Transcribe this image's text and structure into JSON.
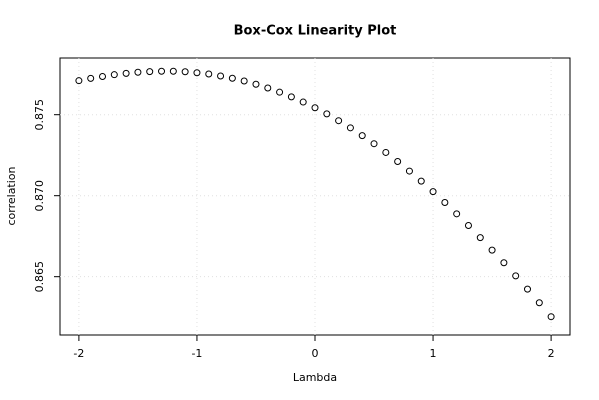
{
  "chart_data": {
    "type": "scatter",
    "title": "Box-Cox Linearity Plot",
    "x_label": "Lambda",
    "y_label": "correlation",
    "color": "#000000",
    "grid": true,
    "xlim": [
      -2.16,
      2.16
    ],
    "ylim": [
      0.8614,
      0.8785
    ],
    "xticks": [
      -2,
      -1,
      0,
      1,
      2
    ],
    "yticks": [
      0.865,
      {
        "value": 0.87,
        "label": "0.870"
      },
      0.875
    ],
    "x": [
      -2.0,
      -1.9,
      -1.8,
      -1.7,
      -1.6,
      -1.5,
      -1.4,
      -1.3,
      -1.2,
      -1.1,
      -1.0,
      -0.9,
      -0.8,
      -0.7,
      -0.6,
      -0.5,
      -0.4,
      -0.3,
      -0.2,
      -0.1,
      0.0,
      0.1,
      0.2,
      0.3,
      0.4,
      0.5,
      0.6,
      0.7,
      0.8,
      0.9,
      1.0,
      1.1,
      1.2,
      1.3,
      1.4,
      1.5,
      1.6,
      1.7,
      1.8,
      1.9,
      2.0
    ],
    "values": [
      0.8771,
      0.87724,
      0.87736,
      0.87747,
      0.87755,
      0.87762,
      0.87766,
      0.87768,
      0.87768,
      0.87765,
      0.87759,
      0.87751,
      0.87739,
      0.87725,
      0.87708,
      0.87688,
      0.87665,
      0.87639,
      0.8761,
      0.87578,
      0.87543,
      0.87505,
      0.87463,
      0.87419,
      0.87371,
      0.87321,
      0.87267,
      0.87211,
      0.87152,
      0.8709,
      0.87025,
      0.86958,
      0.86888,
      0.86816,
      0.86741,
      0.86664,
      0.86586,
      0.86505,
      0.86423,
      0.86339,
      0.86253
    ]
  }
}
